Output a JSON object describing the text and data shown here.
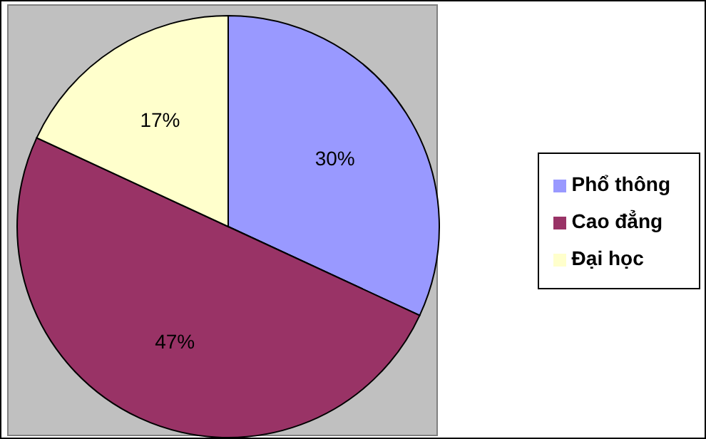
{
  "chart_data": {
    "type": "pie",
    "categories": [
      "Phổ thông",
      "Cao đẳng",
      "Đại học"
    ],
    "values": [
      30,
      47,
      17
    ],
    "value_labels": [
      "30%",
      "47%",
      "17%"
    ],
    "colors": [
      "#9999ff",
      "#993366",
      "#ffffcc"
    ],
    "legend": "right"
  }
}
